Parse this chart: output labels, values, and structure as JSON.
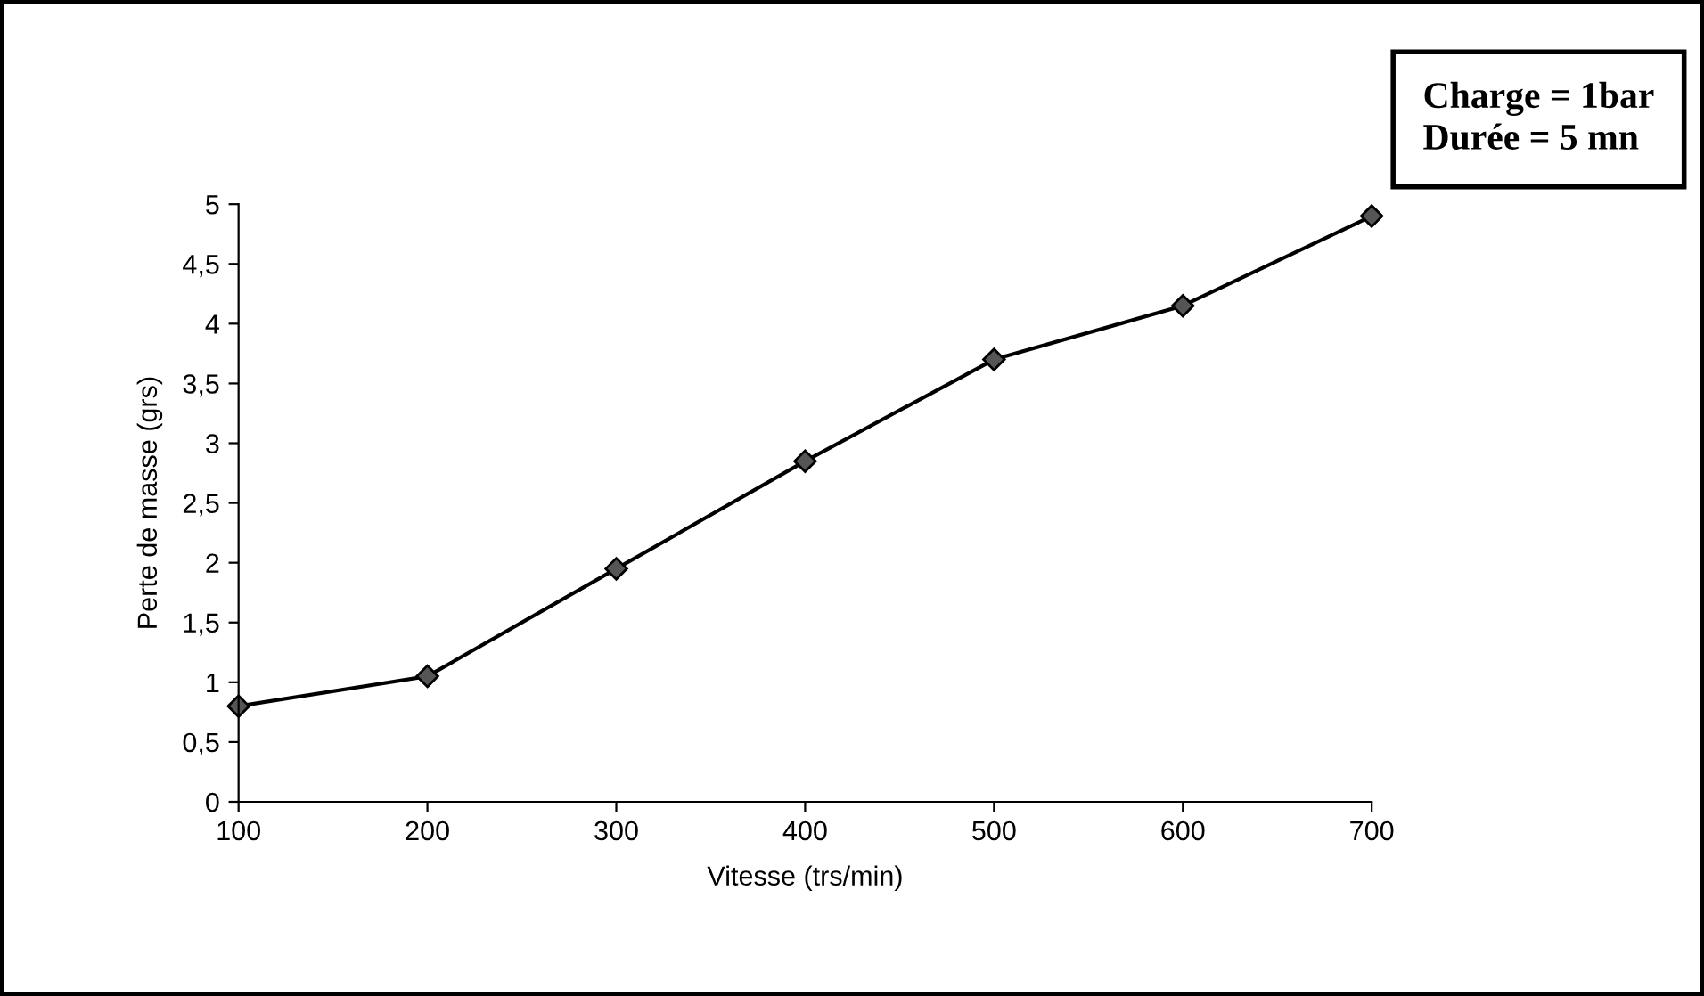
{
  "chart_data": {
    "type": "line",
    "xlabel": "Vitesse (trs/min)",
    "ylabel": "Perte de masse (grs)",
    "x": [
      100,
      200,
      300,
      400,
      500,
      600,
      700
    ],
    "series": [
      {
        "color": "#000000",
        "values": [
          0.8,
          1.05,
          1.95,
          2.85,
          3.7,
          4.15,
          4.9
        ]
      }
    ],
    "xlim": [
      100,
      700
    ],
    "xticks": [
      100,
      200,
      300,
      400,
      500,
      600,
      700
    ],
    "ylim": [
      0,
      5
    ],
    "yticks": [
      0,
      {
        "value": 0.5,
        "label": "0,5"
      },
      1,
      {
        "value": 1.5,
        "label": "1,5"
      },
      2,
      {
        "value": 2.5,
        "label": "2,5"
      },
      3,
      {
        "value": 3.5,
        "label": "3,5"
      },
      4,
      {
        "value": 4.5,
        "label": "4,5"
      },
      5
    ],
    "marker": "diamond",
    "line_style": "solid",
    "annotations": [
      "Charge = 1bar",
      "Durée = 5 mn"
    ]
  }
}
